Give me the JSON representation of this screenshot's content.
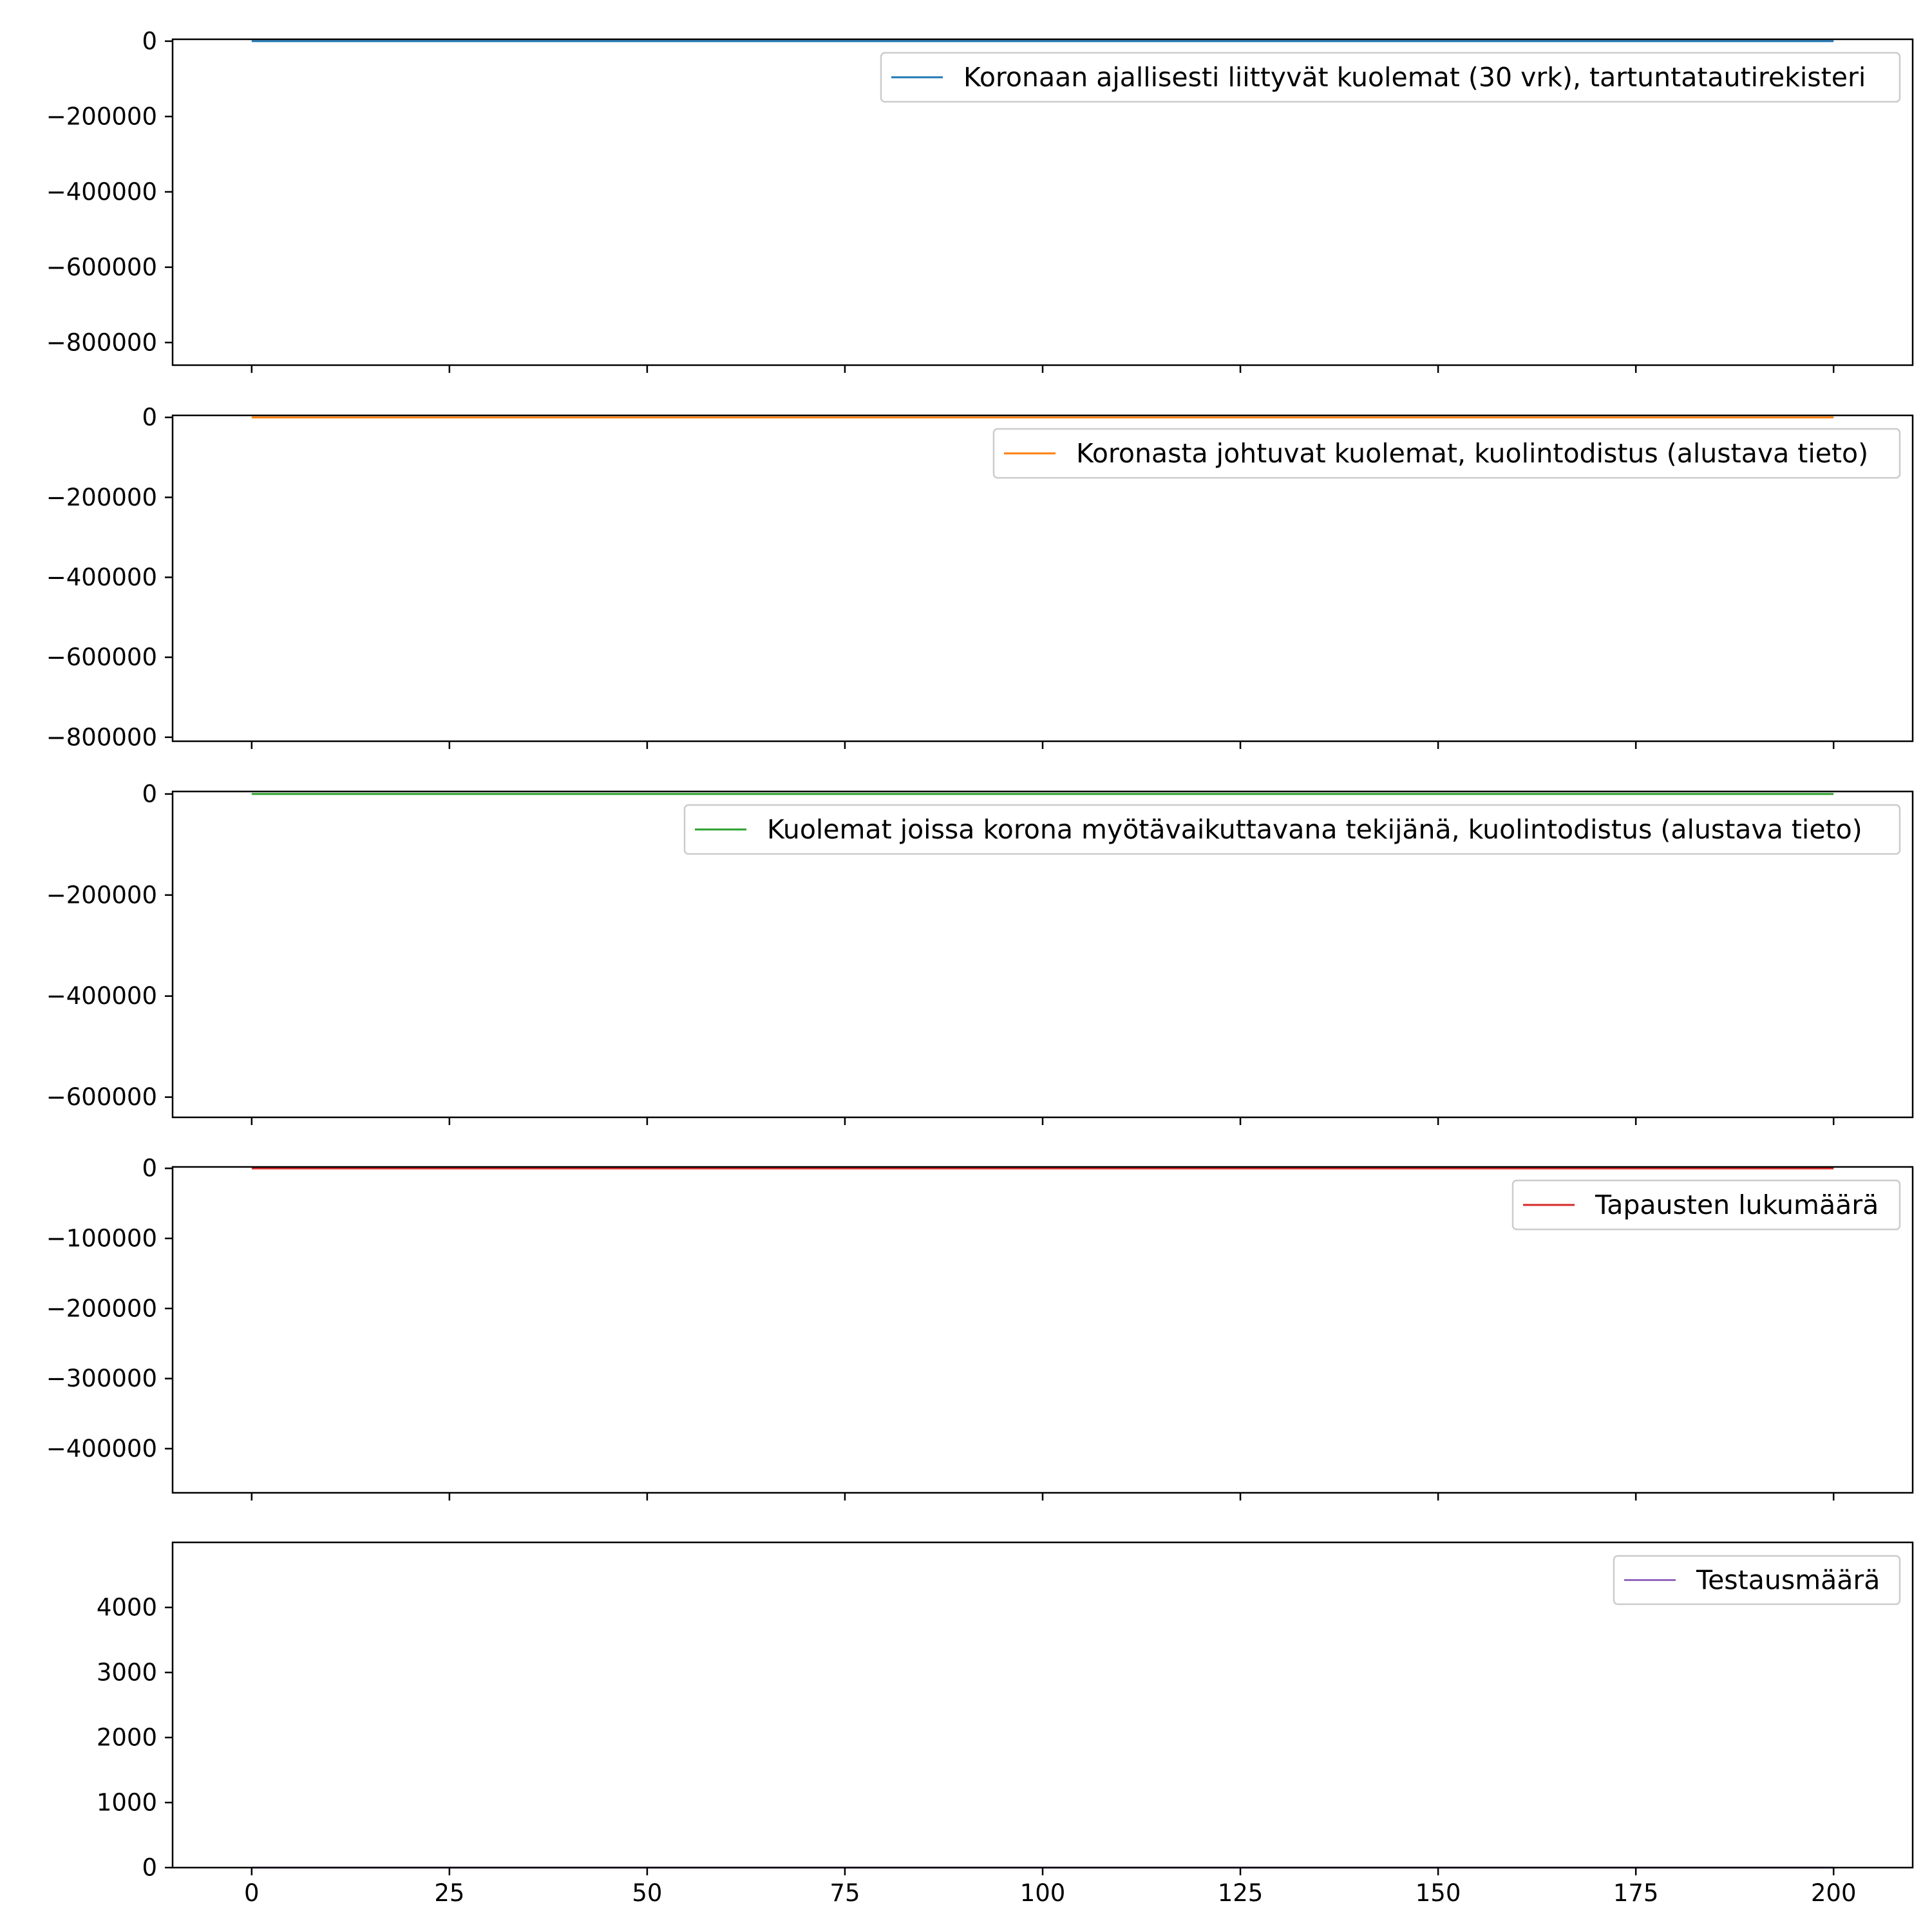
{
  "chart_data": [
    {
      "type": "line",
      "title": "",
      "xlabel": "",
      "ylabel": "",
      "xlim": [
        -10,
        210
      ],
      "ylim": [
        -860000,
        5000
      ],
      "xticks": [
        0,
        25,
        50,
        75,
        100,
        125,
        150,
        175,
        200
      ],
      "show_xtick_labels": false,
      "yticks": [
        0,
        -200000,
        -400000,
        -600000,
        -800000
      ],
      "ytick_labels": [
        "0",
        "−200000",
        "−400000",
        "−600000",
        "−800000"
      ],
      "grid": false,
      "legend_position": "upper right",
      "series": [
        {
          "name": "Koronaan ajallisesti liittyvät kuolemat (30 vrk), tartuntatautirekisteri",
          "color": "#1f77b4",
          "x": [
            0,
            200
          ],
          "y": [
            0,
            0
          ]
        }
      ]
    },
    {
      "type": "line",
      "title": "",
      "xlabel": "",
      "ylabel": "",
      "xlim": [
        -10,
        210
      ],
      "ylim": [
        -810000,
        5000
      ],
      "xticks": [
        0,
        25,
        50,
        75,
        100,
        125,
        150,
        175,
        200
      ],
      "show_xtick_labels": false,
      "yticks": [
        0,
        -200000,
        -400000,
        -600000,
        -800000
      ],
      "ytick_labels": [
        "0",
        "−200000",
        "−400000",
        "−600000",
        "−800000"
      ],
      "grid": false,
      "legend_position": "upper right",
      "series": [
        {
          "name": "Koronasta johtuvat kuolemat, kuolintodistus (alustava tieto)",
          "color": "#ff7f0e",
          "x": [
            0,
            200
          ],
          "y": [
            0,
            0
          ]
        }
      ]
    },
    {
      "type": "line",
      "title": "",
      "xlabel": "",
      "ylabel": "",
      "xlim": [
        -10,
        210
      ],
      "ylim": [
        -640000,
        5000
      ],
      "xticks": [
        0,
        25,
        50,
        75,
        100,
        125,
        150,
        175,
        200
      ],
      "show_xtick_labels": false,
      "yticks": [
        0,
        -200000,
        -400000,
        -600000
      ],
      "ytick_labels": [
        "0",
        "−200000",
        "−400000",
        "−600000"
      ],
      "grid": false,
      "legend_position": "upper right",
      "series": [
        {
          "name": "Kuolemat joissa korona myötävaikuttavana tekijänä, kuolintodistus (alustava tieto)",
          "color": "#2ca02c",
          "x": [
            0,
            200
          ],
          "y": [
            0,
            0
          ]
        }
      ]
    },
    {
      "type": "line",
      "title": "",
      "xlabel": "",
      "ylabel": "",
      "xlim": [
        -10,
        210
      ],
      "ylim": [
        -463000,
        2000
      ],
      "xticks": [
        0,
        25,
        50,
        75,
        100,
        125,
        150,
        175,
        200
      ],
      "show_xtick_labels": false,
      "yticks": [
        0,
        -100000,
        -200000,
        -300000,
        -400000
      ],
      "ytick_labels": [
        "0",
        "−100000",
        "−200000",
        "−300000",
        "−400000"
      ],
      "grid": false,
      "legend_position": "upper right",
      "series": [
        {
          "name": "Tapausten lukumäärä",
          "color": "#d62728",
          "x": [
            0,
            200
          ],
          "y": [
            0,
            0
          ]
        }
      ]
    },
    {
      "type": "line",
      "title": "",
      "xlabel": "",
      "ylabel": "",
      "xlim": [
        -10,
        210
      ],
      "ylim": [
        0,
        5000
      ],
      "xticks": [
        0,
        25,
        50,
        75,
        100,
        125,
        150,
        175,
        200
      ],
      "show_xtick_labels": true,
      "xtick_labels": [
        "0",
        "25",
        "50",
        "75",
        "100",
        "125",
        "150",
        "175",
        "200"
      ],
      "yticks": [
        0,
        1000,
        2000,
        3000,
        4000
      ],
      "ytick_labels": [
        "0",
        "1000",
        "2000",
        "3000",
        "4000"
      ],
      "grid": false,
      "legend_position": "upper right",
      "series": [
        {
          "name": "Testausmäärä",
          "color": "#9467bd",
          "x": [
            0,
            200
          ],
          "y": [
            0,
            0
          ]
        }
      ]
    }
  ]
}
